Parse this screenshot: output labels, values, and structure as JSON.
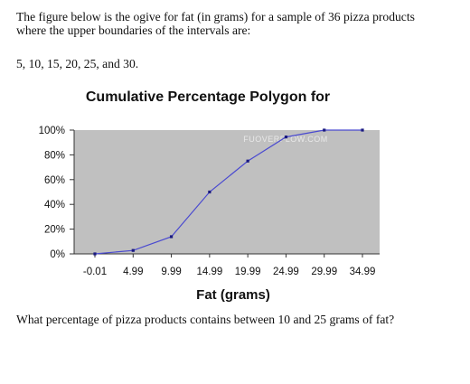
{
  "text": {
    "intro": "The figure below is the ogive for fat (in grams) for a sample of 36 pizza products where the upper boundaries of the intervals are:",
    "values_line": "5, 10, 15, 20, 25, and 30.",
    "question": "What percentage of pizza products contains between 10 and 25 grams of fat?"
  },
  "watermark": {
    "text": "FUOVERFLOW.COM"
  },
  "colors": {
    "plot_bg": "#c0c0c0",
    "line": "#4a4ad0",
    "marker": "#1a1a80"
  },
  "chart_data": {
    "type": "line",
    "title": "Cumulative Percentage Polygon for",
    "xlabel": "Fat (grams)",
    "ylabel": "",
    "x": [
      "-0.01",
      "4.99",
      "9.99",
      "14.99",
      "19.99",
      "24.99",
      "29.99",
      "34.99"
    ],
    "series": [
      {
        "values": [
          0,
          2.78,
          13.89,
          50,
          75,
          94.44,
          100,
          100
        ]
      }
    ],
    "ylim": [
      0,
      100
    ],
    "yticks": [
      "0%",
      "20%",
      "40%",
      "60%",
      "80%",
      "100%"
    ],
    "grid": false,
    "legend": "none"
  }
}
